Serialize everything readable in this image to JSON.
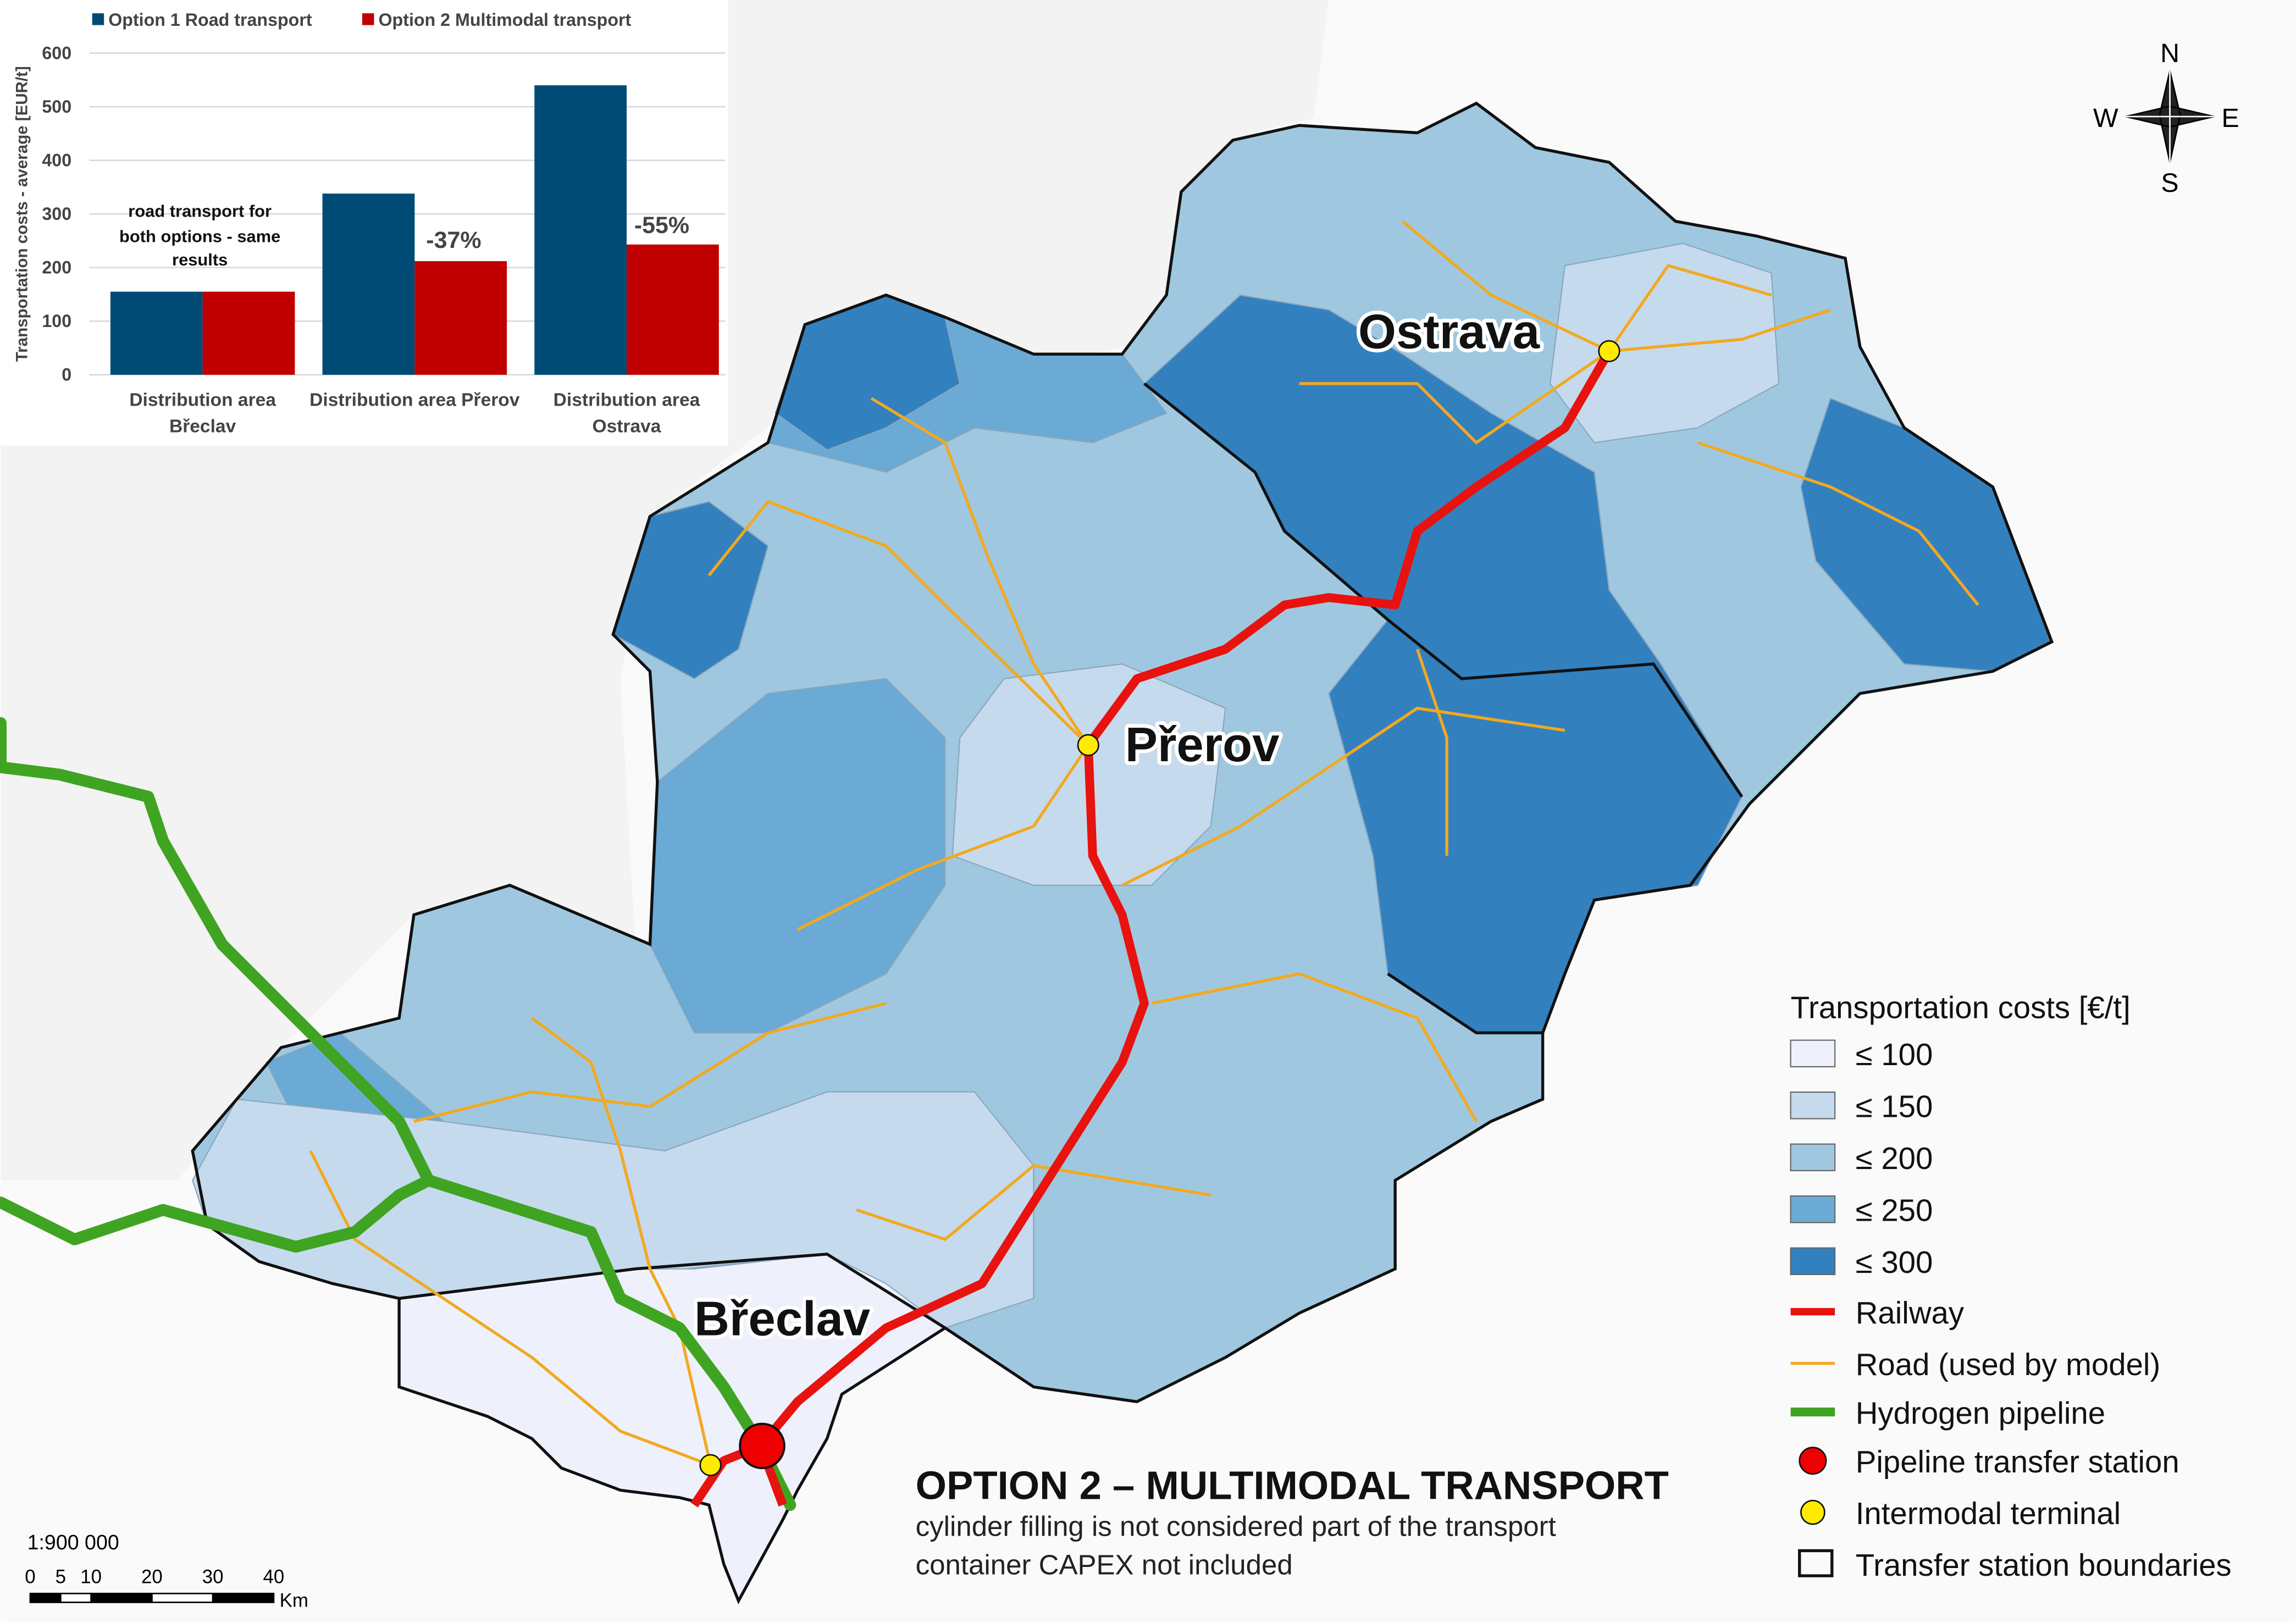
{
  "chart_data": {
    "type": "bar",
    "categories": [
      "Distribution area Břeclav",
      "Distribution area Přerov",
      "Distribution area Ostrava"
    ],
    "series": [
      {
        "name": "Option 1 Road transport",
        "color": "#004b76",
        "values": [
          155,
          338,
          540
        ]
      },
      {
        "name": "Option 2 Multimodal transport",
        "color": "#c00000",
        "values": [
          155,
          212,
          243
        ]
      }
    ],
    "y_label": "Transportation costs - average [EUR/t]",
    "ylim": [
      0,
      600
    ],
    "yticks": [
      0,
      100,
      200,
      300,
      400,
      500,
      600
    ],
    "grid": true,
    "annotations": [
      "road transport for both options - same results",
      "-37%",
      "-55%"
    ]
  },
  "map": {
    "title": "OPTION 2 – MULTIMODAL TRANSPORT",
    "notes": [
      "cylinder filling is not considered part of the transport",
      "container CAPEX not included"
    ],
    "cities": [
      "Ostrava",
      "Přerov",
      "Břeclav"
    ],
    "legend": {
      "title": "Transportation costs [€/t]",
      "classes": [
        {
          "label": "≤ 100",
          "color": "#eef1fb"
        },
        {
          "label": "≤ 150",
          "color": "#c6daee"
        },
        {
          "label": "≤ 200",
          "color": "#9fc8e0"
        },
        {
          "label": "≤ 250",
          "color": "#6aaad5"
        },
        {
          "label": "≤ 300",
          "color": "#3380bf"
        }
      ],
      "items": [
        "Railway",
        "Road (used by model)",
        "Hydrogen pipeline",
        "Pipeline transfer station",
        "Intermodal terminal",
        "Transfer station boundaries"
      ]
    },
    "scale": {
      "ratio": "1:900 000",
      "ticks": [
        0,
        5,
        10,
        20,
        30,
        40
      ],
      "unit": "Km"
    },
    "compass": {
      "north": "N",
      "east": "E",
      "south": "S",
      "west": "W"
    }
  }
}
